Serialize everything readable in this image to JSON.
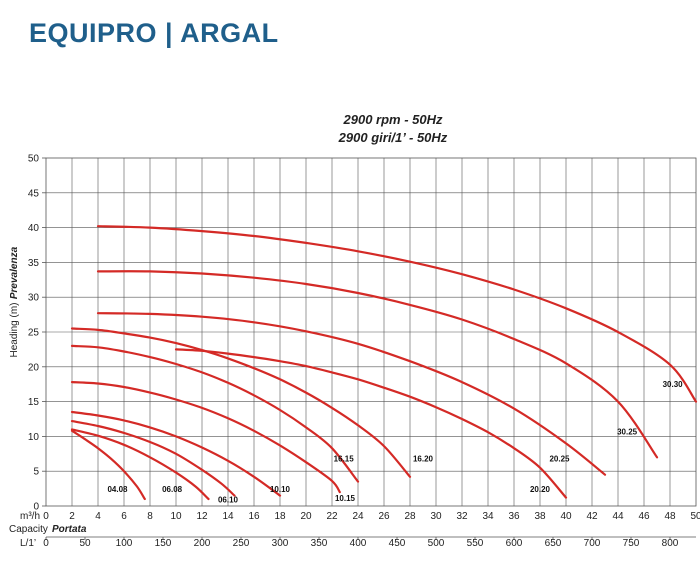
{
  "brand": {
    "title": "EQUIPRO | ARGAL"
  },
  "chart_data": {
    "type": "line",
    "title_line1": "2900 rpm - 50Hz",
    "title_line2": "2900 giri/1’ - 50Hz",
    "ylabel": "Heading (m)",
    "ylabel2": "Prevalenza",
    "ylim": [
      0,
      50
    ],
    "yticks": [
      0,
      5,
      10,
      15,
      20,
      25,
      30,
      35,
      40,
      45,
      50
    ],
    "xlim": [
      0,
      50
    ],
    "xticks": [
      0,
      2,
      4,
      6,
      8,
      10,
      12,
      14,
      16,
      18,
      20,
      22,
      24,
      26,
      28,
      30,
      32,
      34,
      36,
      38,
      40,
      42,
      44,
      46,
      48,
      50
    ],
    "x_axis_unit": "m³/h",
    "capacity_label": "Capacity",
    "capacity_label2": "Portata",
    "lmin_unit": "L/1’",
    "lmin_ticks": [
      0,
      50,
      100,
      150,
      200,
      250,
      300,
      350,
      400,
      450,
      500,
      550,
      600,
      650,
      700,
      750,
      800
    ],
    "grid": true,
    "line_color": "#d42a26",
    "series": [
      {
        "name": "04.08",
        "x": [
          2,
          3,
          4,
          5,
          6,
          7,
          7.6
        ],
        "y": [
          10.8,
          9.6,
          8.3,
          6.8,
          5.0,
          2.8,
          1.0
        ]
      },
      {
        "name": "06.08",
        "x": [
          2,
          4,
          6,
          8,
          10,
          11.5,
          12.5
        ],
        "y": [
          11,
          10.1,
          8.8,
          7.0,
          4.8,
          2.8,
          1.0
        ]
      },
      {
        "name": "06.10",
        "x": [
          2,
          4,
          6,
          8,
          10,
          12,
          13.5,
          14.5
        ],
        "y": [
          12.2,
          11.5,
          10.5,
          9.2,
          7.5,
          5.2,
          3.2,
          1.5
        ]
      },
      {
        "name": "10.10",
        "x": [
          2,
          4,
          6,
          8,
          10,
          12,
          14,
          16,
          18
        ],
        "y": [
          13.5,
          13.0,
          12.3,
          11.3,
          10.0,
          8.4,
          6.5,
          4.2,
          1.5
        ]
      },
      {
        "name": "10.15",
        "x": [
          2,
          4,
          6,
          8,
          10,
          12,
          14,
          16,
          18,
          20,
          22,
          22.6
        ],
        "y": [
          17.8,
          17.6,
          17.1,
          16.3,
          15.3,
          14.1,
          12.6,
          10.8,
          8.7,
          6.3,
          3.6,
          2.0
        ]
      },
      {
        "name": "16.15",
        "x": [
          2,
          4,
          6,
          8,
          10,
          12,
          14,
          16,
          18,
          20,
          22,
          24
        ],
        "y": [
          23.0,
          22.8,
          22.2,
          21.4,
          20.4,
          19.2,
          17.7,
          15.9,
          13.8,
          11.3,
          8.3,
          3.5
        ]
      },
      {
        "name": "16.20",
        "x": [
          2,
          4,
          6,
          8,
          10,
          12,
          14,
          16,
          18,
          20,
          22,
          24,
          26,
          28
        ],
        "y": [
          25.5,
          25.3,
          24.8,
          24.2,
          23.4,
          22.4,
          21.2,
          19.8,
          18.2,
          16.3,
          14.1,
          11.6,
          8.6,
          4.2
        ]
      },
      {
        "name": "20.20",
        "x": [
          10,
          12,
          14,
          16,
          18,
          20,
          22,
          24,
          26,
          28,
          30,
          32,
          34,
          36,
          38,
          40
        ],
        "y": [
          22.5,
          22.3,
          21.9,
          21.4,
          20.8,
          20.1,
          19.2,
          18.2,
          17.0,
          15.7,
          14.2,
          12.5,
          10.6,
          8.3,
          5.5,
          1.2
        ]
      },
      {
        "name": "20.25",
        "x": [
          4,
          8,
          12,
          16,
          20,
          24,
          28,
          32,
          36,
          40,
          43
        ],
        "y": [
          27.7,
          27.6,
          27.2,
          26.4,
          25.1,
          23.3,
          20.8,
          17.8,
          14.0,
          9.0,
          4.5
        ]
      },
      {
        "name": "30.25",
        "x": [
          4,
          8,
          12,
          16,
          20,
          24,
          28,
          32,
          36,
          40,
          44,
          47
        ],
        "y": [
          33.7,
          33.7,
          33.4,
          32.8,
          31.9,
          30.6,
          28.9,
          26.8,
          24.0,
          20.5,
          15.0,
          7.0
        ]
      },
      {
        "name": "30.30",
        "x": [
          4,
          8,
          12,
          16,
          20,
          24,
          28,
          32,
          36,
          40,
          44,
          48,
          50
        ],
        "y": [
          40.2,
          40.0,
          39.5,
          38.8,
          37.8,
          36.6,
          35.1,
          33.3,
          31.1,
          28.4,
          25.0,
          20.3,
          15.0
        ]
      }
    ],
    "curve_labels": [
      {
        "name": "04.08",
        "x": 5.5,
        "y": 2.0
      },
      {
        "name": "06.08",
        "x": 9.7,
        "y": 2.0
      },
      {
        "name": "06.10",
        "x": 14.0,
        "y": 0.5
      },
      {
        "name": "10.10",
        "x": 18.0,
        "y": 2.0
      },
      {
        "name": "10.15",
        "x": 23.0,
        "y": 0.7
      },
      {
        "name": "16.15",
        "x": 22.9,
        "y": 6.4
      },
      {
        "name": "16.20",
        "x": 29.0,
        "y": 6.4
      },
      {
        "name": "20.20",
        "x": 38.0,
        "y": 2.0
      },
      {
        "name": "20.25",
        "x": 39.5,
        "y": 6.4
      },
      {
        "name": "30.25",
        "x": 44.7,
        "y": 10.3
      },
      {
        "name": "30.30",
        "x": 48.2,
        "y": 17.1
      }
    ]
  }
}
